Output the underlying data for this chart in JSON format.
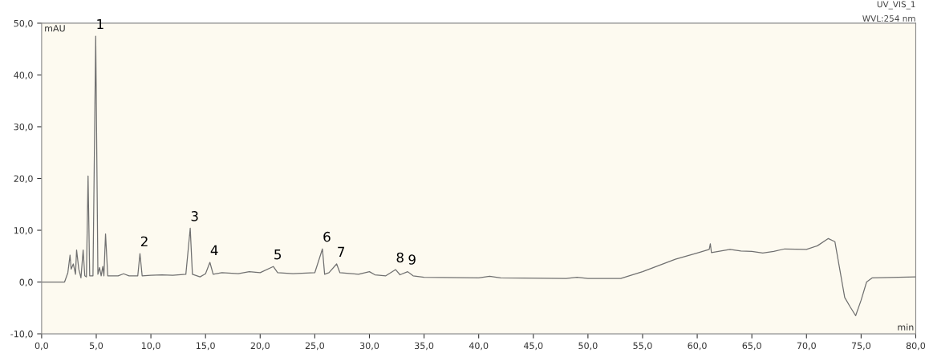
{
  "chart_data": {
    "type": "line",
    "xlabel": "min",
    "ylabel": "mAU",
    "x": [
      0,
      2.1,
      2.4,
      2.6,
      2.7,
      2.9,
      3.1,
      3.2,
      3.4,
      3.6,
      3.8,
      3.95,
      4.1,
      4.25,
      4.4,
      4.7,
      4.95,
      5.15,
      5.3,
      5.45,
      5.6,
      5.7,
      5.85,
      6.05,
      7,
      7.5,
      8,
      8.8,
      9.0,
      9.2,
      10,
      11,
      12,
      13.2,
      13.6,
      13.8,
      14.5,
      15.0,
      15.4,
      15.7,
      16.5,
      18,
      19,
      20,
      21.2,
      21.6,
      23,
      25,
      25.7,
      25.9,
      26.3,
      27.0,
      27.3,
      29,
      30,
      30.5,
      31.5,
      32.4,
      32.8,
      33.5,
      34,
      35,
      40,
      41,
      42,
      48,
      49,
      50,
      53,
      55,
      58,
      60,
      61.1,
      61.2,
      61.3,
      63,
      64,
      65,
      66,
      67,
      68,
      70,
      71,
      72,
      72.6,
      73,
      73.5,
      74,
      74.5,
      75,
      75.5,
      76,
      80
    ],
    "series": [
      {
        "color": "#707070",
        "values": [
          0,
          0,
          1.8,
          5.2,
          2.5,
          3.5,
          1.5,
          6.2,
          2.5,
          0.8,
          6.2,
          1.2,
          1.0,
          20.5,
          1.2,
          1.2,
          47.5,
          1.5,
          2.8,
          1.2,
          3.0,
          1.2,
          9.3,
          1.2,
          1.2,
          1.6,
          1.2,
          1.2,
          5.5,
          1.2,
          1.3,
          1.4,
          1.3,
          1.5,
          10.4,
          1.5,
          1.0,
          1.6,
          3.8,
          1.5,
          1.8,
          1.6,
          2.0,
          1.8,
          3.0,
          1.8,
          1.6,
          1.8,
          6.4,
          1.5,
          1.8,
          3.5,
          1.8,
          1.5,
          2.0,
          1.4,
          1.2,
          2.4,
          1.4,
          2.0,
          1.2,
          0.9,
          0.8,
          1.1,
          0.8,
          0.7,
          0.9,
          0.7,
          0.7,
          2.0,
          4.4,
          5.6,
          6.3,
          7.4,
          5.7,
          6.3,
          6.0,
          5.9,
          5.6,
          5.9,
          6.4,
          6.3,
          7.0,
          8.4,
          7.8,
          3.0,
          -3.0,
          -4.8,
          -6.5,
          -3.5,
          0,
          0.8,
          1.0
        ]
      }
    ],
    "xlim": [
      0,
      80
    ],
    "ylim": [
      -10,
      50
    ],
    "xticks": [
      {
        "value": 0,
        "label": "0,0"
      },
      {
        "value": 5,
        "label": "5,0"
      },
      {
        "value": 10,
        "label": "10,0"
      },
      {
        "value": 15,
        "label": "15,0"
      },
      {
        "value": 20,
        "label": "20,0"
      },
      {
        "value": 25,
        "label": "25,0"
      },
      {
        "value": 30,
        "label": "30,0"
      },
      {
        "value": 35,
        "label": "35,0"
      },
      {
        "value": 40,
        "label": "40,0"
      },
      {
        "value": 45,
        "label": "45,0"
      },
      {
        "value": 50,
        "label": "50,0"
      },
      {
        "value": 55,
        "label": "55,0"
      },
      {
        "value": 60,
        "label": "60,0"
      },
      {
        "value": 65,
        "label": "65,0"
      },
      {
        "value": 70,
        "label": "70,0"
      },
      {
        "value": 75,
        "label": "75,0"
      },
      {
        "value": 80,
        "label": "80,0"
      }
    ],
    "yticks": [
      {
        "value": -10,
        "label": "-10,0"
      },
      {
        "value": 0,
        "label": "0,0"
      },
      {
        "value": 10,
        "label": "10,0"
      },
      {
        "value": 20,
        "label": "20,0"
      },
      {
        "value": 30,
        "label": "30,0"
      },
      {
        "value": 40,
        "label": "40,0"
      },
      {
        "value": 50,
        "label": "50,0"
      }
    ],
    "annotations": [
      {
        "text": "1",
        "x": 4.95,
        "y": 47.5
      },
      {
        "text": "2",
        "x": 9.0,
        "y": 5.5
      },
      {
        "text": "3",
        "x": 13.6,
        "y": 10.4
      },
      {
        "text": "4",
        "x": 15.4,
        "y": 3.8
      },
      {
        "text": "5",
        "x": 21.2,
        "y": 3.0
      },
      {
        "text": "6",
        "x": 25.7,
        "y": 6.4
      },
      {
        "text": "7",
        "x": 27.0,
        "y": 3.5
      },
      {
        "text": "8",
        "x": 32.4,
        "y": 2.4
      },
      {
        "text": "9",
        "x": 33.5,
        "y": 2.0
      },
      "UV_VIS_1",
      "WVL:254 nm"
    ],
    "grid": false,
    "legend": false,
    "marker": "none",
    "line_style": "solid"
  }
}
